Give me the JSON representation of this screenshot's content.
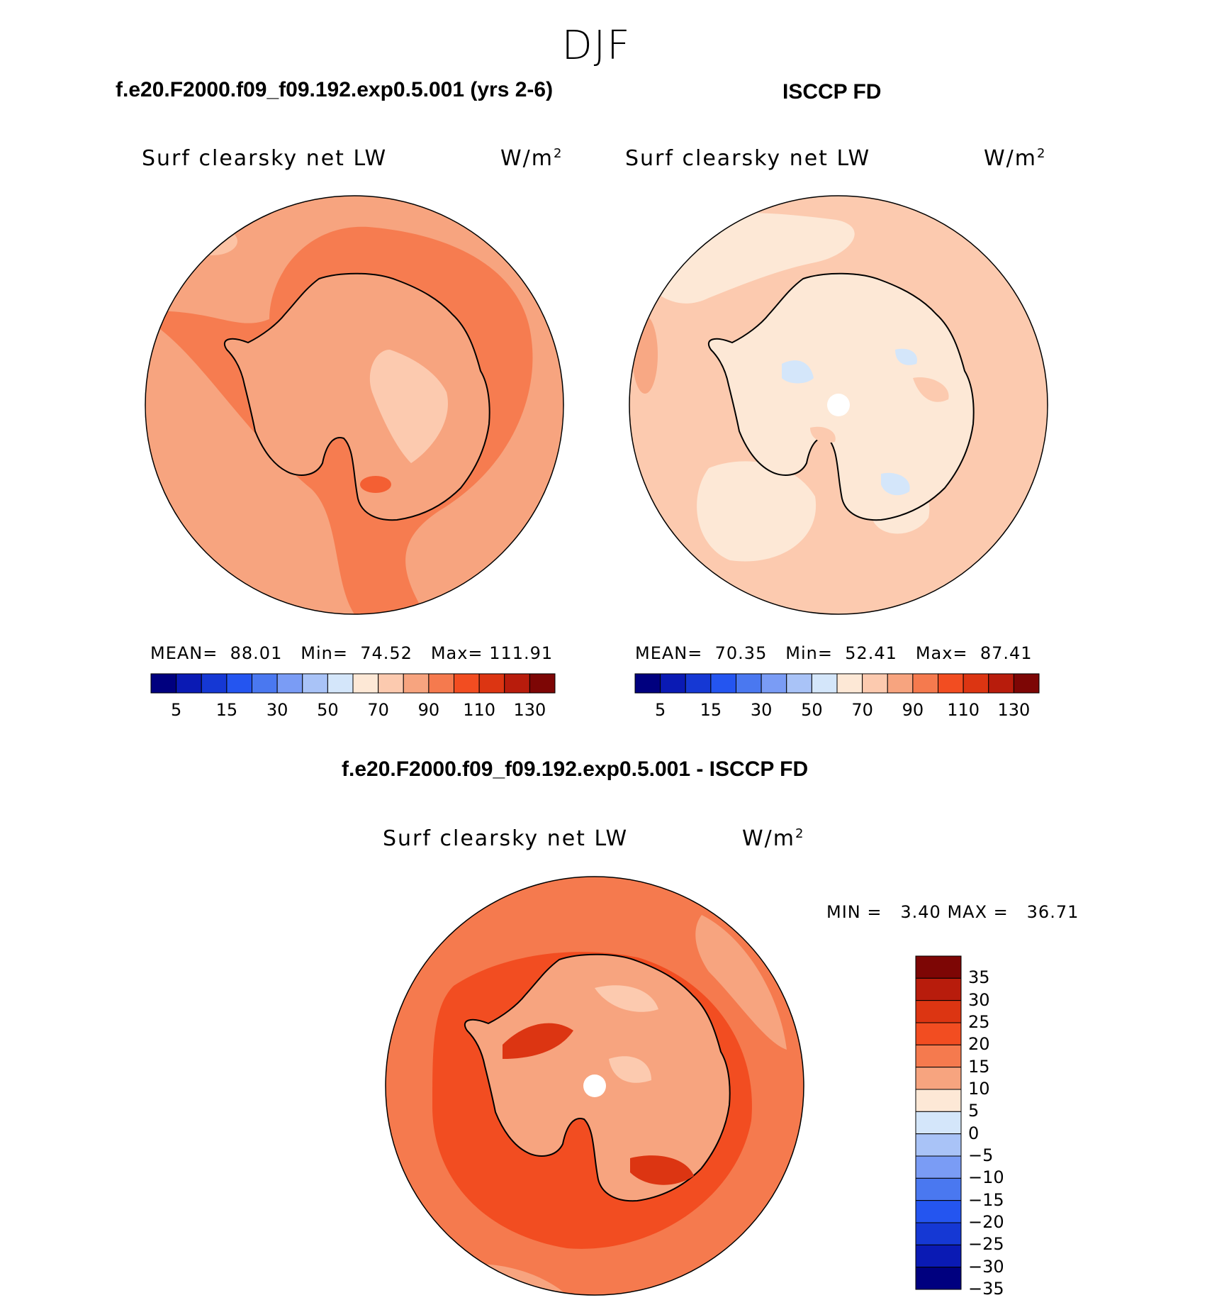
{
  "super_title": "DJF",
  "panels": [
    {
      "title": "f.e20.F2000.f09_f09.192.exp0.5.001 (yrs 2-6)",
      "field": "Surf clearsky net LW",
      "units_base": "W/m",
      "units_exp": "2",
      "stats": [
        {
          "label": "MEAN=",
          "value": "88.01"
        },
        {
          "label": "Min=",
          "value": "74.52"
        },
        {
          "label": "Max=",
          "value": "111.91"
        }
      ]
    },
    {
      "title": "ISCCP FD",
      "field": "Surf clearsky net LW",
      "units_base": "W/m",
      "units_exp": "2",
      "stats": [
        {
          "label": "MEAN=",
          "value": "70.35"
        },
        {
          "label": "Min=",
          "value": "52.41"
        },
        {
          "label": "Max=",
          "value": "87.41"
        }
      ]
    },
    {
      "title": "f.e20.F2000.f09_f09.192.exp0.5.001 - ISCCP FD",
      "field": "Surf clearsky net LW",
      "units_base": "W/m",
      "units_exp": "2",
      "minmax": {
        "min_label": "MIN =",
        "min_value": "3.40",
        "max_label": "MAX =",
        "max_value": "36.71"
      }
    }
  ],
  "colorbar_h": {
    "colors": [
      "#00007f",
      "#0a1ab4",
      "#1538d4",
      "#2455f0",
      "#4a78f0",
      "#7a9cf5",
      "#a9c3f7",
      "#d4e6fa",
      "#fde8d6",
      "#fccaaf",
      "#f7a47f",
      "#f57a4e",
      "#f24d21",
      "#dc3512",
      "#b81c0c",
      "#7d0605"
    ],
    "labels": [
      "5",
      "15",
      "30",
      "50",
      "70",
      "90",
      "110",
      "130"
    ]
  },
  "colorbar_v": {
    "colors": [
      "#7d0605",
      "#b81c0c",
      "#dc3512",
      "#f24d21",
      "#f57a4e",
      "#f7a47f",
      "#fde8d6",
      "#d4e6fa",
      "#a9c3f7",
      "#7a9cf5",
      "#4a78f0",
      "#2455f0",
      "#1538d4",
      "#0a1ab4",
      "#00007f"
    ],
    "labels": [
      "35",
      "30",
      "25",
      "20",
      "15",
      "10",
      "5",
      "0",
      "−5",
      "−10",
      "−15",
      "−20",
      "−25",
      "−30",
      "−35"
    ]
  }
}
